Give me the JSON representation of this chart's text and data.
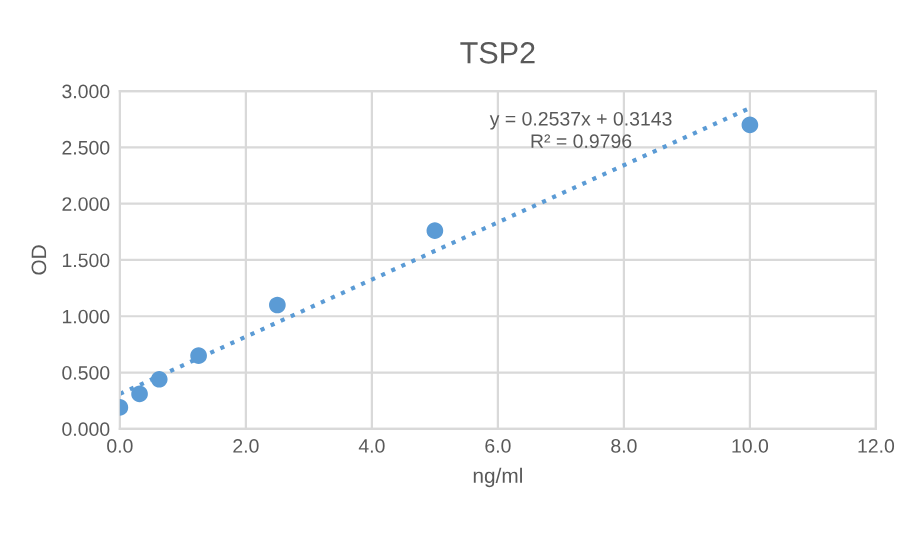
{
  "chart_data": {
    "type": "scatter",
    "title": "TSP2",
    "xlabel": "ng/ml",
    "ylabel": "OD",
    "series": [
      {
        "color": "#5b9bd5",
        "x": [
          0,
          0.3125,
          0.625,
          1.25,
          2.5,
          5,
          10
        ],
        "values": [
          0.19,
          0.31,
          0.44,
          0.65,
          1.1,
          1.76,
          2.7
        ]
      },
      {
        "type": "line",
        "color": "#5b9bd5",
        "line_style": "dotted",
        "marker": "none",
        "x": [
          0,
          10
        ],
        "values": [
          0.31,
          2.85
        ]
      }
    ],
    "annotations": [
      "y = 0.2537x + 0.3143\nR² = 0.9796"
    ],
    "xlim": [
      0,
      12
    ],
    "ylim": [
      0,
      3
    ],
    "xticks": [
      {
        "value": 0,
        "label": "0.0"
      },
      {
        "value": 2,
        "label": "2.0"
      },
      {
        "value": 4,
        "label": "4.0"
      },
      {
        "value": 6,
        "label": "6.0"
      },
      {
        "value": 8,
        "label": "8.0"
      },
      {
        "value": 10,
        "label": "10.0"
      },
      {
        "value": 12,
        "label": "12.0"
      }
    ],
    "yticks": [
      {
        "value": 0,
        "label": "0.000"
      },
      {
        "value": 0.5,
        "label": "0.500"
      },
      {
        "value": 1,
        "label": "1.000"
      },
      {
        "value": 1.5,
        "label": "1.500"
      },
      {
        "value": 2,
        "label": "2.000"
      },
      {
        "value": 2.5,
        "label": "2.500"
      },
      {
        "value": 3,
        "label": "3.000"
      }
    ],
    "grid": true,
    "marker": "circle"
  }
}
